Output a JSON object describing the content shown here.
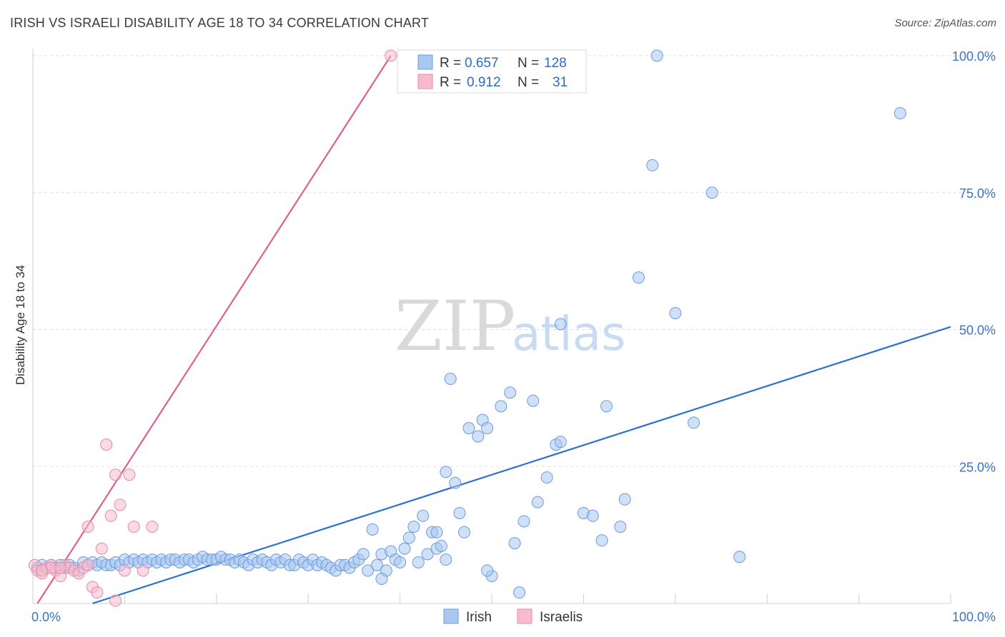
{
  "header": {
    "title": "IRISH VS ISRAELI DISABILITY AGE 18 TO 34 CORRELATION CHART",
    "source": "Source: ZipAtlas.com"
  },
  "watermark": {
    "zip": "ZIP",
    "atlas": "atlas"
  },
  "legend": {
    "irish": {
      "r_label": "R =",
      "r_value": "0.657",
      "n_label": "N =",
      "n_value": "128"
    },
    "israelis": {
      "r_label": "R =",
      "r_value": "0.912",
      "n_label": "N =",
      "n_value": "31"
    }
  },
  "bottom_legend": {
    "irish": "Irish",
    "israelis": "Israelis"
  },
  "chart_data": {
    "type": "scatter",
    "title": "IRISH VS ISRAELI DISABILITY AGE 18 TO 34 CORRELATION CHART",
    "xlabel": "",
    "ylabel": "Disability Age 18 to 34",
    "xlim": [
      0,
      100
    ],
    "ylim": [
      0,
      100
    ],
    "x_tick_labels": [
      "0.0%",
      "100.0%"
    ],
    "y_tick_labels": [
      "25.0%",
      "50.0%",
      "75.0%",
      "100.0%"
    ],
    "y_ticks": [
      25,
      50,
      75,
      100
    ],
    "grid": true,
    "colors": {
      "irish": "#2a6fd1",
      "irish_fill": "#a9c8f0",
      "israelis": "#e0608a",
      "israelis_fill": "#f6bccd"
    },
    "series": [
      {
        "name": "Irish",
        "trend": {
          "x": [
            6.5,
            100
          ],
          "y": [
            0,
            50.5
          ]
        },
        "points": [
          [
            0.5,
            6.5
          ],
          [
            1,
            7
          ],
          [
            1.5,
            6.5
          ],
          [
            2,
            7
          ],
          [
            2.5,
            6.5
          ],
          [
            3,
            7
          ],
          [
            3.5,
            6.5
          ],
          [
            4,
            7
          ],
          [
            4.5,
            6.5
          ],
          [
            5,
            6
          ],
          [
            5.5,
            7.5
          ],
          [
            6,
            7
          ],
          [
            6.5,
            7.5
          ],
          [
            7,
            7
          ],
          [
            7.5,
            7.5
          ],
          [
            8,
            7
          ],
          [
            8.5,
            7
          ],
          [
            9,
            7.5
          ],
          [
            9.5,
            7
          ],
          [
            10,
            8
          ],
          [
            10.5,
            7.5
          ],
          [
            11,
            8
          ],
          [
            11.5,
            7.5
          ],
          [
            12,
            8
          ],
          [
            12.5,
            7.5
          ],
          [
            13,
            8
          ],
          [
            13.5,
            7.5
          ],
          [
            14,
            8
          ],
          [
            14.5,
            7.5
          ],
          [
            15,
            8
          ],
          [
            15.5,
            8
          ],
          [
            16,
            7.5
          ],
          [
            16.5,
            8
          ],
          [
            17,
            8
          ],
          [
            17.5,
            7.5
          ],
          [
            18,
            8
          ],
          [
            18.5,
            8.5
          ],
          [
            19,
            8
          ],
          [
            19.5,
            8
          ],
          [
            20,
            8
          ],
          [
            20.5,
            8.5
          ],
          [
            21,
            8
          ],
          [
            21.5,
            8
          ],
          [
            22,
            7.5
          ],
          [
            22.5,
            8
          ],
          [
            23,
            7.5
          ],
          [
            23.5,
            7
          ],
          [
            24,
            8
          ],
          [
            24.5,
            7.5
          ],
          [
            25,
            8
          ],
          [
            25.5,
            7.5
          ],
          [
            26,
            7
          ],
          [
            26.5,
            8
          ],
          [
            27,
            7.5
          ],
          [
            27.5,
            8
          ],
          [
            28,
            7
          ],
          [
            28.5,
            7
          ],
          [
            29,
            8
          ],
          [
            29.5,
            7.5
          ],
          [
            30,
            7
          ],
          [
            30.5,
            8
          ],
          [
            31,
            7
          ],
          [
            31.5,
            7.5
          ],
          [
            32,
            7
          ],
          [
            32.5,
            6.5
          ],
          [
            33,
            6
          ],
          [
            33.5,
            7
          ],
          [
            34,
            7
          ],
          [
            34.5,
            6.5
          ],
          [
            35,
            7.5
          ],
          [
            35.5,
            8
          ],
          [
            36,
            9
          ],
          [
            36.5,
            6
          ],
          [
            37,
            13.5
          ],
          [
            37.5,
            7
          ],
          [
            38,
            9
          ],
          [
            38.5,
            6
          ],
          [
            39,
            9.5
          ],
          [
            39.5,
            8
          ],
          [
            40,
            7.5
          ],
          [
            40.5,
            10
          ],
          [
            41,
            12
          ],
          [
            41.5,
            14
          ],
          [
            42,
            7.5
          ],
          [
            42.5,
            16
          ],
          [
            43,
            9
          ],
          [
            43.5,
            13
          ],
          [
            44,
            10
          ],
          [
            44.5,
            10.5
          ],
          [
            44,
            13
          ],
          [
            45,
            24
          ],
          [
            46,
            22
          ],
          [
            45,
            8
          ],
          [
            47,
            13
          ],
          [
            46.5,
            16.5
          ],
          [
            45.5,
            41
          ],
          [
            47.5,
            32
          ],
          [
            49,
            33.5
          ],
          [
            49.5,
            32
          ],
          [
            48.5,
            30.5
          ],
          [
            50,
            5
          ],
          [
            51,
            36
          ],
          [
            52,
            38.5
          ],
          [
            52.5,
            11
          ],
          [
            53.5,
            15
          ],
          [
            54.5,
            37
          ],
          [
            55,
            18.5
          ],
          [
            56,
            23
          ],
          [
            57,
            29
          ],
          [
            57.5,
            29.5
          ],
          [
            57.5,
            51
          ],
          [
            60,
            16.5
          ],
          [
            61,
            16
          ],
          [
            62,
            11.5
          ],
          [
            62.5,
            36
          ],
          [
            64,
            14
          ],
          [
            64.5,
            19
          ],
          [
            66,
            59.5
          ],
          [
            67.5,
            80
          ],
          [
            70,
            53
          ],
          [
            72,
            33
          ],
          [
            74,
            75
          ],
          [
            77,
            8.5
          ],
          [
            53,
            2
          ],
          [
            49.5,
            6
          ],
          [
            38,
            4.5
          ],
          [
            94.5,
            89.5
          ],
          [
            68,
            100
          ]
        ]
      },
      {
        "name": "Israelis",
        "trend": {
          "x": [
            0.5,
            39
          ],
          "y": [
            0,
            100
          ]
        },
        "points": [
          [
            0.2,
            7
          ],
          [
            0.5,
            6
          ],
          [
            1,
            5.5
          ],
          [
            1.5,
            6.5
          ],
          [
            2,
            7
          ],
          [
            2.5,
            6
          ],
          [
            3,
            5
          ],
          [
            3.5,
            7
          ],
          [
            4,
            6.5
          ],
          [
            4.5,
            6
          ],
          [
            5,
            5.5
          ],
          [
            5.5,
            6.5
          ],
          [
            6,
            7
          ],
          [
            6.5,
            3
          ],
          [
            7,
            2
          ],
          [
            7.5,
            10
          ],
          [
            8,
            29
          ],
          [
            8.5,
            16
          ],
          [
            9,
            23.5
          ],
          [
            9.5,
            18
          ],
          [
            10,
            6
          ],
          [
            10.5,
            23.5
          ],
          [
            11,
            14
          ],
          [
            12,
            6
          ],
          [
            13,
            14
          ],
          [
            6,
            14
          ],
          [
            2,
            6.5
          ],
          [
            1,
            6
          ],
          [
            3,
            6.5
          ],
          [
            9,
            0.5
          ],
          [
            39,
            100
          ]
        ]
      }
    ]
  }
}
